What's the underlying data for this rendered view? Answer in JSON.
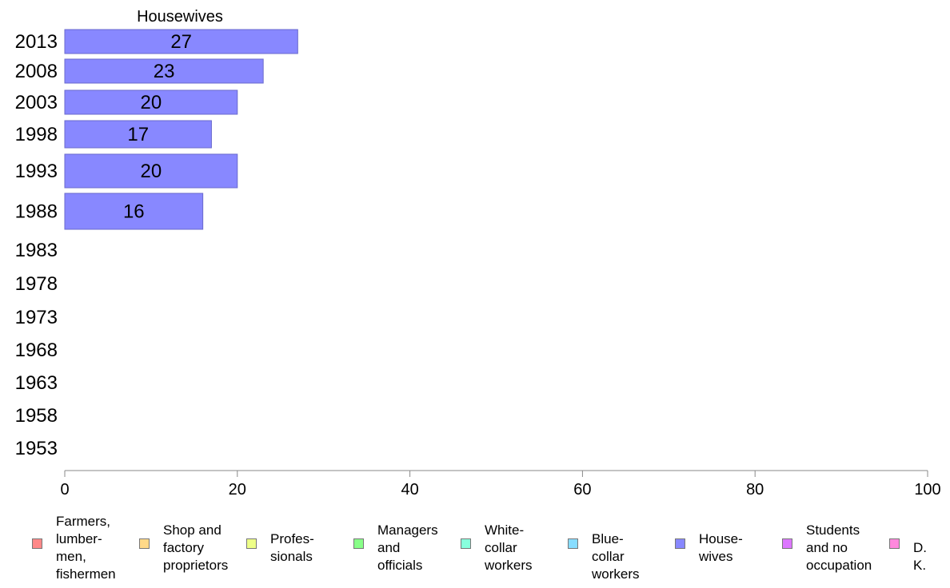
{
  "chart_data": {
    "type": "bar",
    "orientation": "horizontal",
    "title": "Housewives",
    "categories": [
      "2013",
      "2008",
      "2003",
      "1998",
      "1993",
      "1988",
      "1983",
      "1978",
      "1973",
      "1968",
      "1963",
      "1958",
      "1953"
    ],
    "series": [
      {
        "name": "House-\nwives",
        "color": "#8888ff",
        "values": [
          27,
          23,
          20,
          17,
          20,
          16,
          null,
          null,
          null,
          null,
          null,
          null,
          null
        ],
        "labels": [
          "27",
          "23",
          "20",
          "17",
          "20",
          "16",
          "",
          "",
          "",
          "",
          "",
          "",
          ""
        ]
      }
    ],
    "xlim": [
      0,
      100
    ],
    "xticks": [
      "0",
      "20",
      "40",
      "60",
      "80",
      "100"
    ],
    "grid": false,
    "legend_placement": "bottom"
  },
  "legend": [
    {
      "label": "Farmers,\nlumber-\nmen,\nfishermen",
      "color": "#ff8888",
      "icon": "square-swatch"
    },
    {
      "label": "Shop and\nfactory\nproprietors",
      "color": "#ffd988",
      "icon": "square-swatch"
    },
    {
      "label": "Profes-\nsionals",
      "color": "#eeff88",
      "icon": "square-swatch"
    },
    {
      "label": "Managers\nand\nofficials",
      "color": "#88ff88",
      "icon": "square-swatch"
    },
    {
      "label": "White-\ncollar\nworkers",
      "color": "#88ffdd",
      "icon": "square-swatch"
    },
    {
      "label": "Blue-collar\nworkers",
      "color": "#88ddff",
      "icon": "square-swatch"
    },
    {
      "label": "House-\nwives",
      "color": "#8888ff",
      "icon": "square-swatch"
    },
    {
      "label": "Students\nand no\noccupation",
      "color": "#dd77ff",
      "icon": "square-swatch"
    },
    {
      "label": "D. K.",
      "color": "#ff88dd",
      "icon": "square-swatch"
    }
  ]
}
